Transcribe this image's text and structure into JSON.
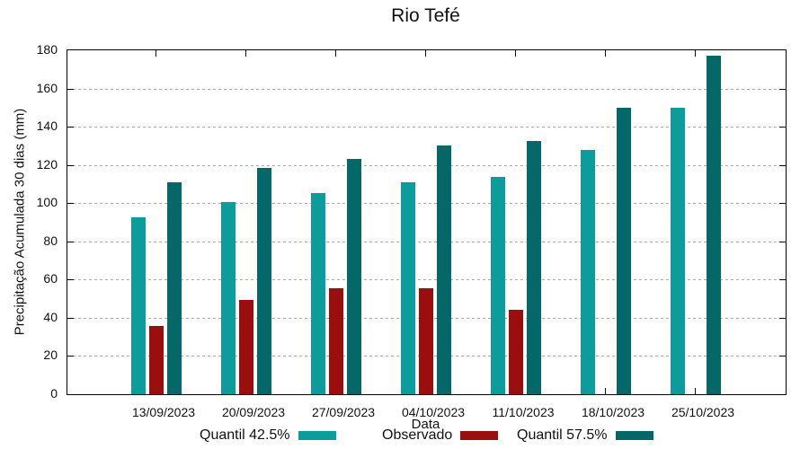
{
  "title": "Rio Tefé",
  "colors": {
    "quantil_42_5": "#0D9C9C",
    "observado": "#9A0E0E",
    "quantil_57_5": "#046868",
    "grid": "#AAAAAA",
    "axis": "#000000"
  },
  "chart_data": {
    "type": "bar",
    "title": "Rio Tefé",
    "xlabel": "Data",
    "ylabel": "Precipitação Acumulada 30 dias (mm)",
    "ylim": [
      0,
      180
    ],
    "ytick_step": 20,
    "ytick_labels": [
      "0",
      "20",
      "40",
      "60",
      "80",
      "100",
      "120",
      "140",
      "160",
      "180"
    ],
    "grid": "horizontal-dotted",
    "legend_position": "bottom",
    "categories": [
      "13/09/2023",
      "20/09/2023",
      "27/09/2023",
      "04/10/2023",
      "11/10/2023",
      "18/10/2023",
      "25/10/2023"
    ],
    "series": [
      {
        "name": "Quantil 42.5%",
        "color": "#0D9C9C",
        "values": [
          92.5,
          100.5,
          105.5,
          111,
          113.5,
          128,
          150
        ]
      },
      {
        "name": "Observado",
        "color": "#9A0E0E",
        "values": [
          35.5,
          49.5,
          55.5,
          55.5,
          44,
          null,
          null
        ]
      },
      {
        "name": "Quantil 57.5%",
        "color": "#046868",
        "values": [
          111,
          118.5,
          123,
          130,
          132.5,
          150,
          177
        ]
      }
    ]
  }
}
